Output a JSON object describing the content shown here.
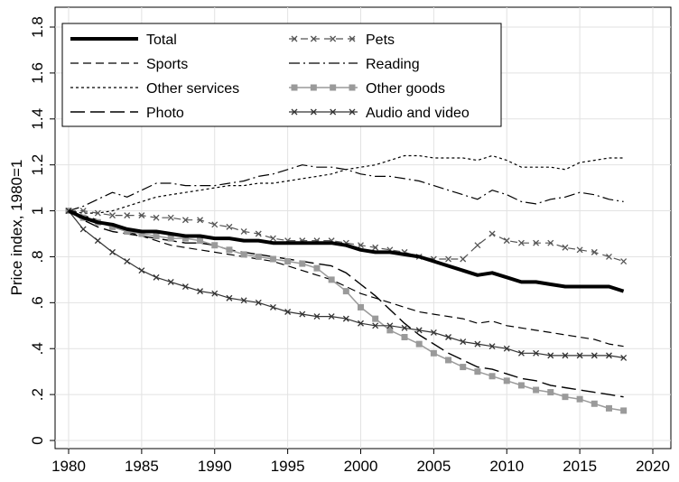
{
  "chart_data": {
    "type": "line",
    "ylabel": "Price index, 1980=1",
    "xlim": [
      1979,
      2021
    ],
    "ylim": [
      0,
      1.8
    ],
    "x_ticks": [
      1980,
      1985,
      1990,
      1995,
      2000,
      2005,
      2010,
      2015,
      2020
    ],
    "x_tick_labels": [
      "1980",
      "1985",
      "1990",
      "1995",
      "2000",
      "2005",
      "2010",
      "2015",
      "2020"
    ],
    "y_ticks": [
      0,
      0.2,
      0.4,
      0.6,
      0.8,
      1,
      1.2,
      1.4,
      1.6,
      1.8
    ],
    "y_tick_labels": [
      "0",
      ".2",
      ".4",
      ".6",
      ".8",
      "1",
      "1.2",
      "1.4",
      "1.6",
      "1.8"
    ],
    "grid": "horizontal and vertical at ticks",
    "legend_position": "top-left inside plot",
    "x": [
      1980,
      1981,
      1982,
      1983,
      1984,
      1985,
      1986,
      1987,
      1988,
      1989,
      1990,
      1991,
      1992,
      1993,
      1994,
      1995,
      1996,
      1997,
      1998,
      1999,
      2000,
      2001,
      2002,
      2003,
      2004,
      2005,
      2006,
      2007,
      2008,
      2009,
      2010,
      2011,
      2012,
      2013,
      2014,
      2015,
      2016,
      2017,
      2018
    ],
    "series": [
      {
        "name": "Total",
        "style": "thick-solid",
        "color": "#000000",
        "values": [
          1.0,
          0.97,
          0.95,
          0.94,
          0.92,
          0.91,
          0.91,
          0.9,
          0.89,
          0.89,
          0.88,
          0.88,
          0.87,
          0.87,
          0.86,
          0.86,
          0.86,
          0.86,
          0.86,
          0.85,
          0.83,
          0.82,
          0.82,
          0.81,
          0.8,
          0.78,
          0.76,
          0.74,
          0.72,
          0.73,
          0.71,
          0.69,
          0.69,
          0.68,
          0.67,
          0.67,
          0.67,
          0.67,
          0.65
        ]
      },
      {
        "name": "Sports",
        "style": "dash",
        "color": "#000000",
        "values": [
          1.0,
          0.98,
          0.96,
          0.93,
          0.91,
          0.89,
          0.87,
          0.85,
          0.84,
          0.83,
          0.82,
          0.81,
          0.8,
          0.79,
          0.78,
          0.76,
          0.74,
          0.72,
          0.7,
          0.67,
          0.64,
          0.62,
          0.6,
          0.58,
          0.56,
          0.55,
          0.54,
          0.53,
          0.51,
          0.52,
          0.5,
          0.49,
          0.48,
          0.47,
          0.46,
          0.45,
          0.44,
          0.42,
          0.41
        ]
      },
      {
        "name": "Other services",
        "style": "shortdash",
        "color": "#000000",
        "values": [
          1.0,
          0.99,
          0.99,
          1.0,
          1.02,
          1.04,
          1.06,
          1.07,
          1.08,
          1.09,
          1.1,
          1.11,
          1.11,
          1.12,
          1.12,
          1.13,
          1.14,
          1.15,
          1.16,
          1.18,
          1.19,
          1.2,
          1.22,
          1.24,
          1.24,
          1.23,
          1.23,
          1.23,
          1.22,
          1.24,
          1.22,
          1.19,
          1.19,
          1.19,
          1.18,
          1.21,
          1.22,
          1.23,
          1.23
        ]
      },
      {
        "name": "Photo",
        "style": "longdash",
        "color": "#000000",
        "values": [
          1.0,
          0.96,
          0.93,
          0.91,
          0.9,
          0.89,
          0.88,
          0.87,
          0.86,
          0.86,
          0.85,
          0.83,
          0.82,
          0.81,
          0.8,
          0.79,
          0.78,
          0.77,
          0.76,
          0.73,
          0.68,
          0.63,
          0.57,
          0.51,
          0.46,
          0.42,
          0.38,
          0.35,
          0.32,
          0.31,
          0.29,
          0.27,
          0.26,
          0.24,
          0.23,
          0.22,
          0.21,
          0.2,
          0.19
        ]
      },
      {
        "name": "Pets",
        "style": "dash-marker",
        "color": "#555555",
        "values": [
          1.0,
          1.0,
          0.99,
          0.98,
          0.98,
          0.98,
          0.97,
          0.97,
          0.96,
          0.96,
          0.94,
          0.93,
          0.91,
          0.9,
          0.88,
          0.87,
          0.87,
          0.87,
          0.87,
          0.86,
          0.85,
          0.84,
          0.83,
          0.82,
          0.8,
          0.79,
          0.79,
          0.79,
          0.85,
          0.9,
          0.87,
          0.86,
          0.86,
          0.86,
          0.84,
          0.83,
          0.82,
          0.8,
          0.78
        ]
      },
      {
        "name": "Reading",
        "style": "dashdot",
        "color": "#000000",
        "values": [
          1.0,
          1.02,
          1.05,
          1.08,
          1.06,
          1.09,
          1.12,
          1.12,
          1.11,
          1.11,
          1.11,
          1.12,
          1.13,
          1.15,
          1.16,
          1.18,
          1.2,
          1.19,
          1.19,
          1.18,
          1.16,
          1.15,
          1.15,
          1.14,
          1.13,
          1.11,
          1.09,
          1.07,
          1.05,
          1.09,
          1.07,
          1.04,
          1.03,
          1.05,
          1.06,
          1.08,
          1.07,
          1.05,
          1.04
        ]
      },
      {
        "name": "Other goods",
        "style": "solid-square",
        "color": "#9a9a9a",
        "values": [
          1.0,
          0.97,
          0.95,
          0.93,
          0.91,
          0.9,
          0.89,
          0.88,
          0.88,
          0.87,
          0.85,
          0.83,
          0.81,
          0.8,
          0.79,
          0.78,
          0.77,
          0.75,
          0.7,
          0.65,
          0.58,
          0.53,
          0.48,
          0.45,
          0.42,
          0.38,
          0.35,
          0.32,
          0.3,
          0.28,
          0.26,
          0.24,
          0.22,
          0.21,
          0.19,
          0.18,
          0.16,
          0.14,
          0.13
        ]
      },
      {
        "name": "Audio and video",
        "style": "solid-x",
        "color": "#333333",
        "values": [
          1.0,
          0.92,
          0.87,
          0.82,
          0.78,
          0.74,
          0.71,
          0.69,
          0.67,
          0.65,
          0.64,
          0.62,
          0.61,
          0.6,
          0.58,
          0.56,
          0.55,
          0.54,
          0.54,
          0.53,
          0.51,
          0.5,
          0.5,
          0.49,
          0.48,
          0.47,
          0.45,
          0.43,
          0.42,
          0.41,
          0.4,
          0.38,
          0.38,
          0.37,
          0.37,
          0.37,
          0.37,
          0.37,
          0.36
        ]
      }
    ]
  }
}
